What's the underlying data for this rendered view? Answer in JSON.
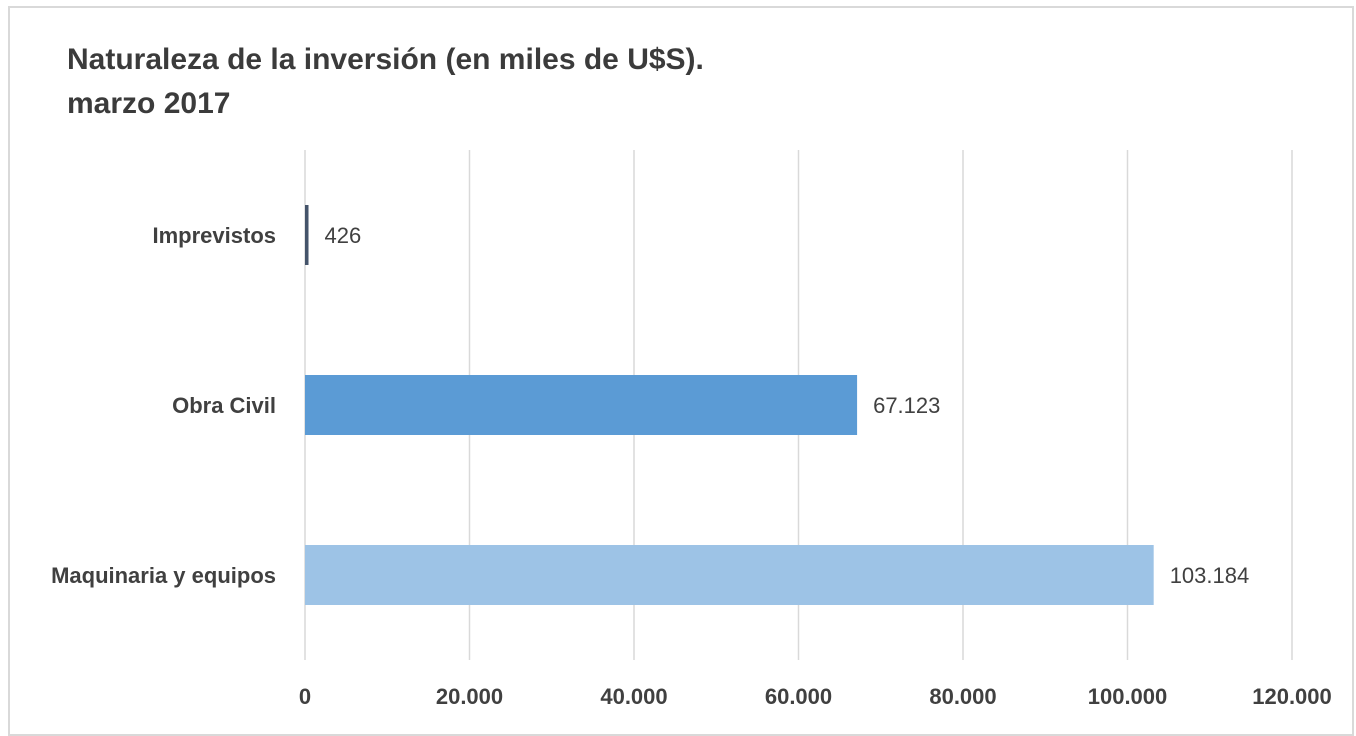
{
  "chart_data": {
    "type": "bar",
    "orientation": "horizontal",
    "title": "Naturaleza de la inversión (en miles de U$S).",
    "subtitle": "marzo 2017",
    "categories": [
      "Imprevistos",
      "Obra Civil",
      "Maquinaria y equipos"
    ],
    "values": [
      426,
      67123,
      103184
    ],
    "value_labels": [
      "426",
      "67.123",
      "103.184"
    ],
    "colors": [
      "#44546a",
      "#5b9bd5",
      "#9dc3e6"
    ],
    "xlim": [
      0,
      120000
    ],
    "x_ticks": [
      0,
      20000,
      40000,
      60000,
      80000,
      100000,
      120000
    ],
    "x_tick_labels": [
      "0",
      "20.000",
      "40.000",
      "60.000",
      "80.000",
      "100.000",
      "120.000"
    ],
    "grid": true,
    "legend": "none"
  }
}
